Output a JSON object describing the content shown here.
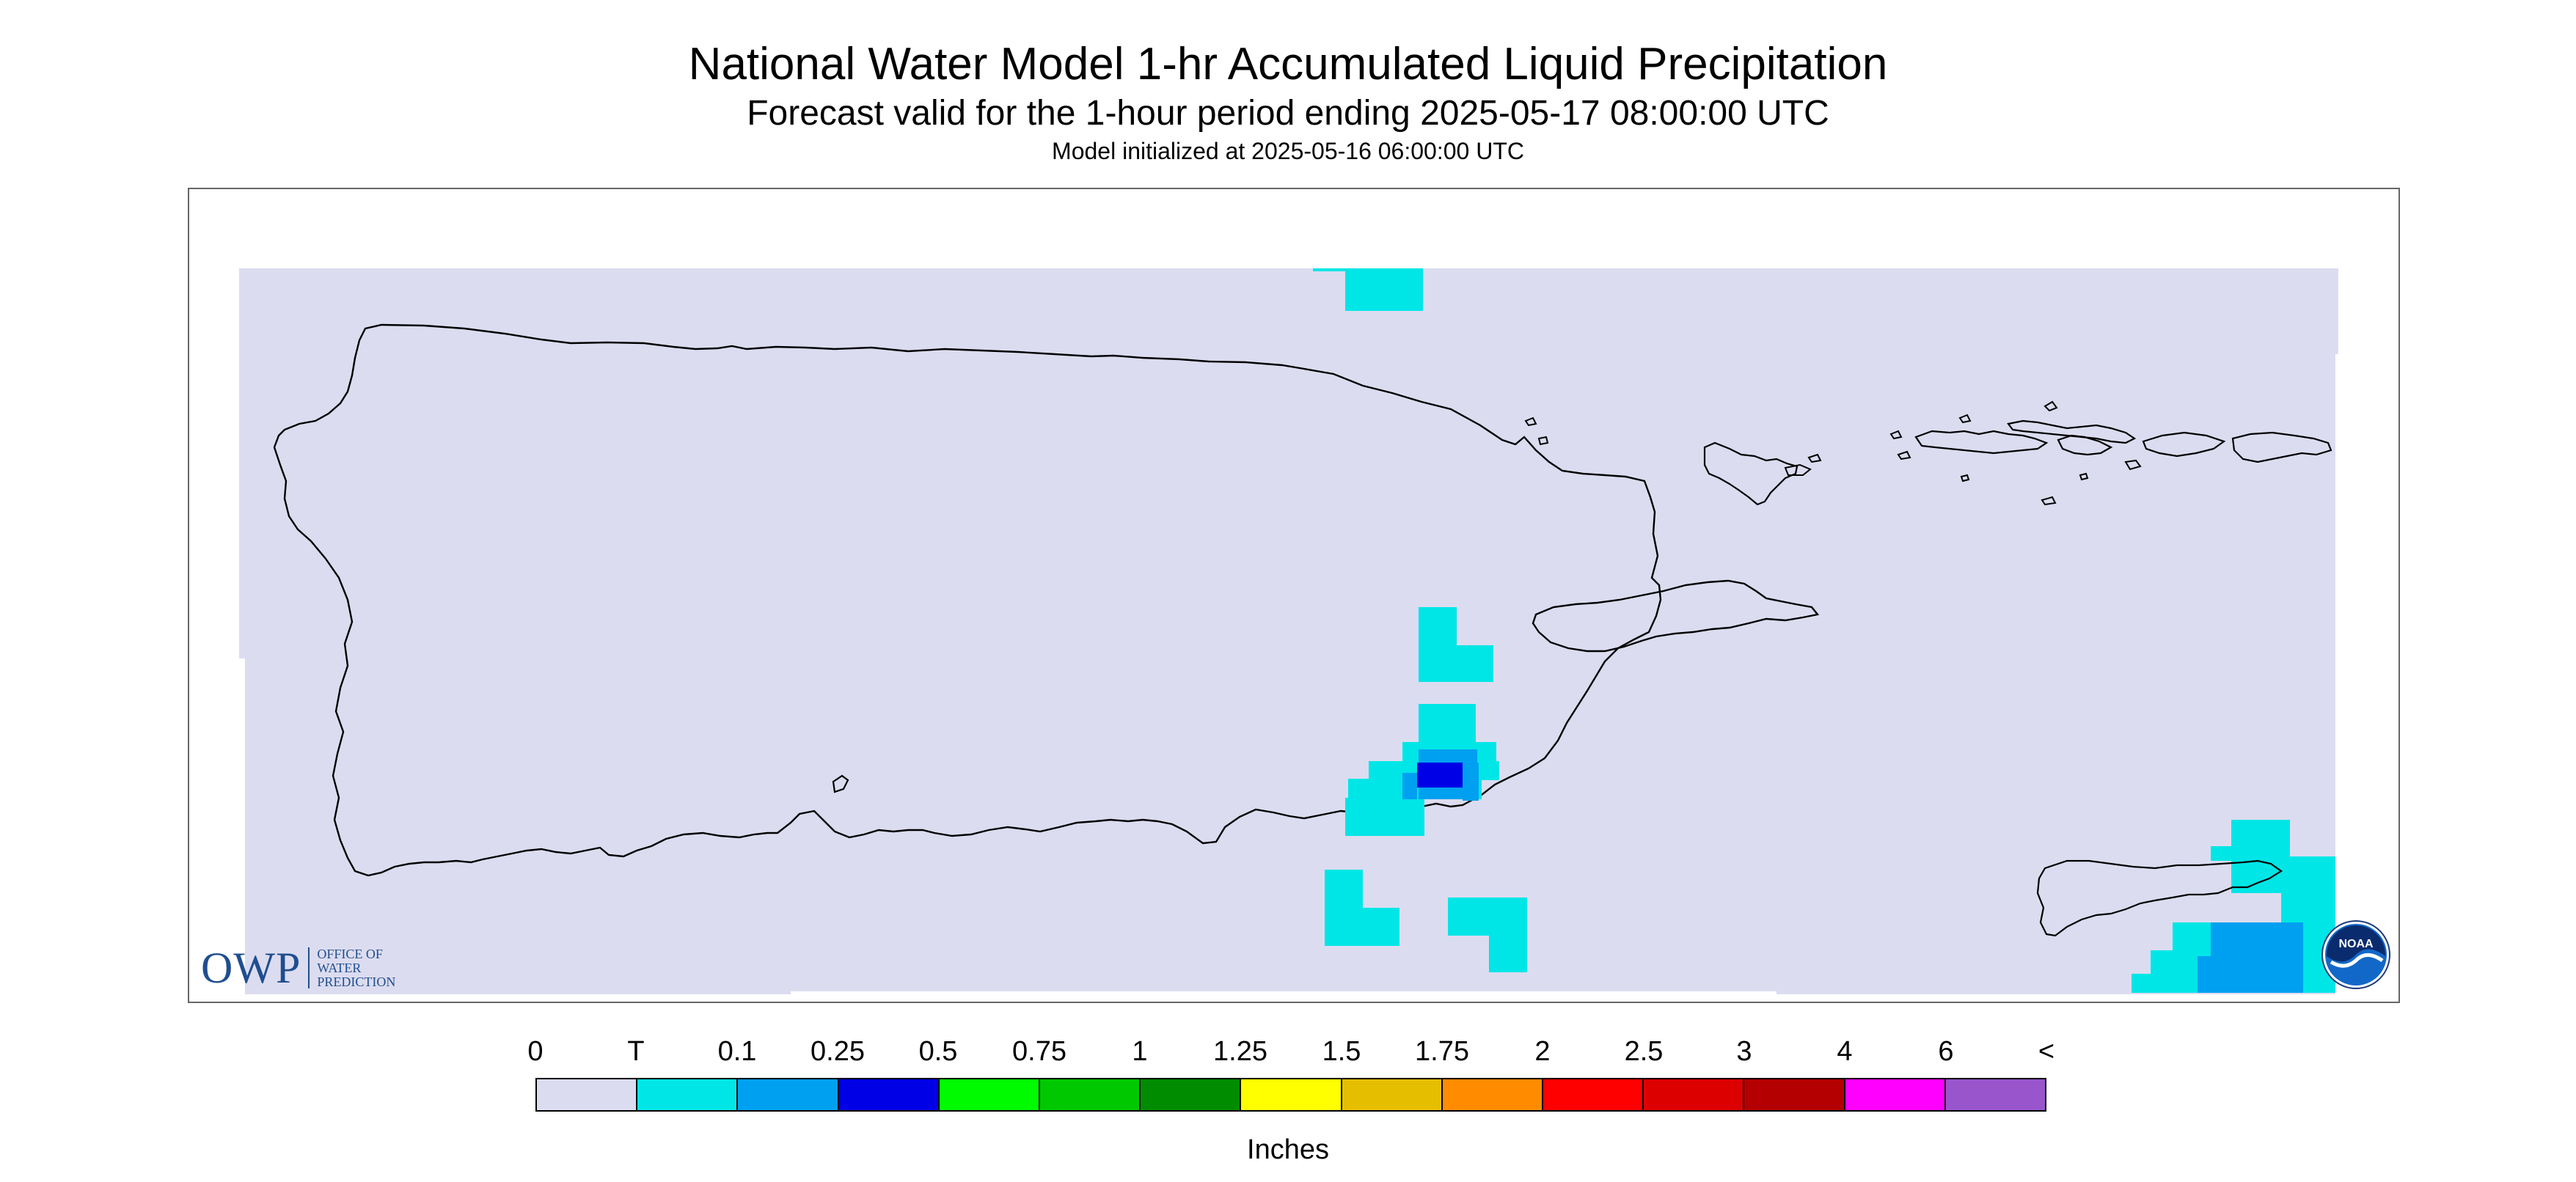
{
  "header": {
    "title": "National Water Model 1-hr Accumulated Liquid Precipitation",
    "subtitle": "Forecast valid for the 1-hour period ending 2025-05-17 08:00:00 UTC",
    "init": "Model initialized at 2025-05-16 06:00:00 UTC"
  },
  "legend": {
    "units": "Inches",
    "ticks": [
      "0",
      "T",
      "0.1",
      "0.25",
      "0.5",
      "0.75",
      "1",
      "1.25",
      "1.5",
      "1.75",
      "2",
      "2.5",
      "3",
      "4",
      "6",
      "<"
    ],
    "colors": [
      "#dcdcf0",
      "#00e6e6",
      "#00a0f0",
      "#0000e6",
      "#00fa00",
      "#00c800",
      "#008c00",
      "#ffff00",
      "#e6be00",
      "#ff8c00",
      "#ff0000",
      "#dc0000",
      "#b40000",
      "#ff00ff",
      "#9955cc"
    ]
  },
  "map": {
    "background_color": "#dcdcf0",
    "outline_color": "#000000",
    "precip_cells": [
      {
        "category": "T",
        "color": "#00e6e6"
      },
      {
        "category": "0.1",
        "color": "#00a0f0"
      },
      {
        "category": "0.25",
        "color": "#0000e6"
      }
    ]
  },
  "logos": {
    "owp_mark": "OWP",
    "owp_text": [
      "OFFICE OF",
      "WATER",
      "PREDICTION"
    ],
    "noaa_text": "NOAA"
  }
}
